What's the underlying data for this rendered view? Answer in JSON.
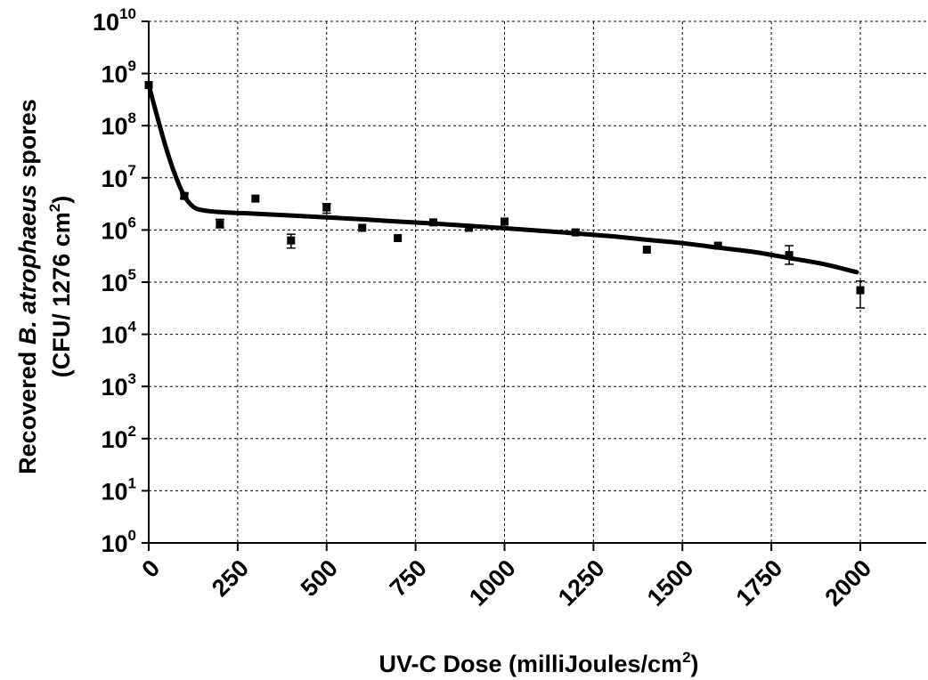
{
  "chart_data": {
    "type": "scatter",
    "xlabel": "UV-C Dose (milliJoules/cm",
    "xlabel_sup": "2",
    "xlabel_end": ")",
    "ylabel_line1_prefix": "Recovered ",
    "ylabel_line1_italic": "B. atrophaeus",
    "ylabel_line1_suffix": " spores",
    "ylabel_line2": "(CFU/ 1276 cm",
    "ylabel_line2_sup": "2",
    "ylabel_line2_end": ")",
    "x_scale": "linear",
    "y_scale": "log10",
    "xlim": [
      0,
      2000
    ],
    "ylim_exponent": [
      0,
      10
    ],
    "x_ticks": [
      "0",
      "250",
      "500",
      "750",
      "1000",
      "1250",
      "1500",
      "1750",
      "2000"
    ],
    "y_ticks": [
      {
        "base": "10",
        "exp": "0"
      },
      {
        "base": "10",
        "exp": "1"
      },
      {
        "base": "10",
        "exp": "2"
      },
      {
        "base": "10",
        "exp": "3"
      },
      {
        "base": "10",
        "exp": "4"
      },
      {
        "base": "10",
        "exp": "5"
      },
      {
        "base": "10",
        "exp": "6"
      },
      {
        "base": "10",
        "exp": "7"
      },
      {
        "base": "10",
        "exp": "8"
      },
      {
        "base": "10",
        "exp": "9"
      },
      {
        "base": "10",
        "exp": "10"
      }
    ],
    "grid": "dashed",
    "marker_color": "#000000",
    "line_color": "#000000",
    "points": [
      {
        "x": 0,
        "y": 600000000
      },
      {
        "x": 100,
        "y": 4500000,
        "err_lo": 4000000,
        "err_hi": 5000000
      },
      {
        "x": 200,
        "y": 1300000,
        "err_lo": 1100000,
        "err_hi": 1600000
      },
      {
        "x": 300,
        "y": 4000000
      },
      {
        "x": 400,
        "y": 630000,
        "err_lo": 450000,
        "err_hi": 830000
      },
      {
        "x": 500,
        "y": 2700000,
        "err_lo": 2100000,
        "err_hi": 3200000
      },
      {
        "x": 600,
        "y": 1100000
      },
      {
        "x": 700,
        "y": 700000
      },
      {
        "x": 800,
        "y": 1400000
      },
      {
        "x": 900,
        "y": 1100000
      },
      {
        "x": 1000,
        "y": 1450000
      },
      {
        "x": 1200,
        "y": 900000
      },
      {
        "x": 1400,
        "y": 420000
      },
      {
        "x": 1600,
        "y": 500000
      },
      {
        "x": 1800,
        "y": 330000,
        "err_lo": 220000,
        "err_hi": 500000
      },
      {
        "x": 2000,
        "y": 70000,
        "err_lo": 32000,
        "err_hi": 105000
      }
    ],
    "fit_curve": [
      {
        "x": 0,
        "y": 600000000
      },
      {
        "x": 25,
        "y": 140000000
      },
      {
        "x": 50,
        "y": 35000000
      },
      {
        "x": 75,
        "y": 11000000
      },
      {
        "x": 100,
        "y": 4500000
      },
      {
        "x": 125,
        "y": 2800000
      },
      {
        "x": 150,
        "y": 2400000
      },
      {
        "x": 200,
        "y": 2200000
      },
      {
        "x": 300,
        "y": 2050000
      },
      {
        "x": 400,
        "y": 1900000
      },
      {
        "x": 500,
        "y": 1750000
      },
      {
        "x": 600,
        "y": 1600000
      },
      {
        "x": 700,
        "y": 1450000
      },
      {
        "x": 800,
        "y": 1330000
      },
      {
        "x": 900,
        "y": 1200000
      },
      {
        "x": 1000,
        "y": 1080000
      },
      {
        "x": 1100,
        "y": 970000
      },
      {
        "x": 1200,
        "y": 860000
      },
      {
        "x": 1300,
        "y": 760000
      },
      {
        "x": 1400,
        "y": 650000
      },
      {
        "x": 1500,
        "y": 560000
      },
      {
        "x": 1600,
        "y": 460000
      },
      {
        "x": 1700,
        "y": 380000
      },
      {
        "x": 1800,
        "y": 290000
      },
      {
        "x": 1900,
        "y": 220000
      },
      {
        "x": 1990,
        "y": 155000
      }
    ]
  }
}
